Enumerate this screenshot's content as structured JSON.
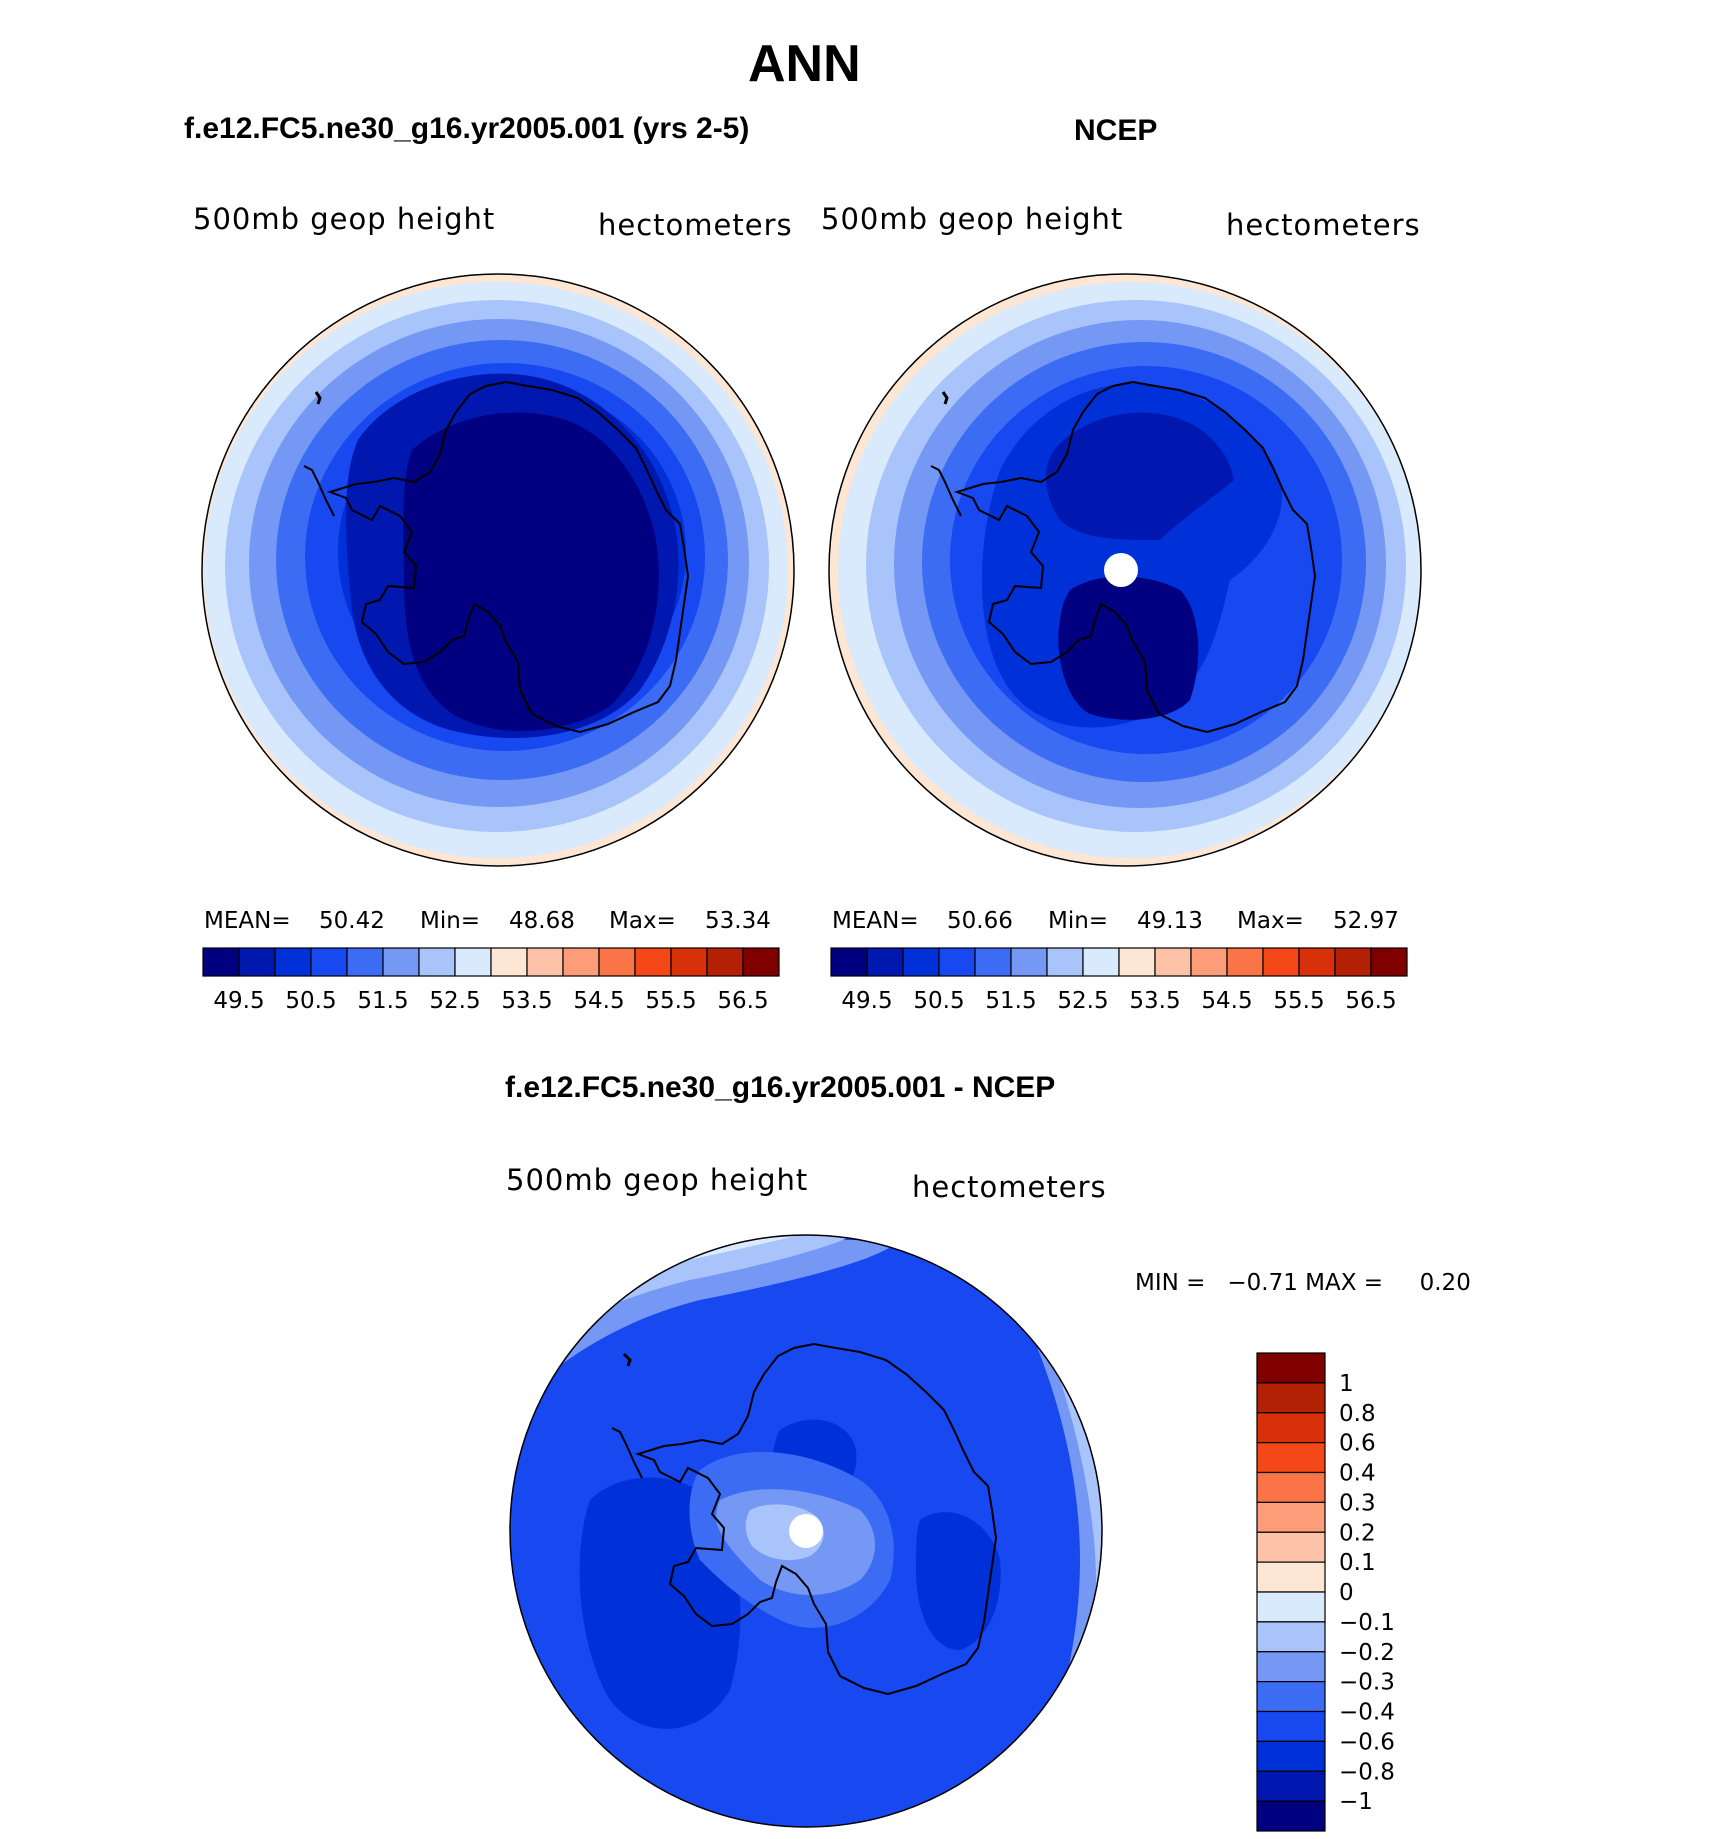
{
  "figure": {
    "title": "ANN",
    "diff_title": "f.e12.FC5.ne30_g16.yr2005.001 - NCEP"
  },
  "panels": [
    {
      "subtitle": "f.e12.FC5.ne30_g16.yr2005.001 (yrs 2-5)",
      "left_label": "500mb geop height",
      "right_label": "hectometers",
      "mean_label": "MEAN=",
      "mean_value": "50.42",
      "min_label": "Min=",
      "min_value": "48.68",
      "max_label": "Max=",
      "max_value": "53.34",
      "has_pole_hole": false
    },
    {
      "subtitle": "NCEP",
      "left_label": "500mb geop height",
      "right_label": "hectometers",
      "mean_label": "MEAN=",
      "mean_value": "50.66",
      "min_label": "Min=",
      "min_value": "49.13",
      "max_label": "Max=",
      "max_value": "52.97",
      "has_pole_hole": true
    }
  ],
  "diff_panel": {
    "left_label": "500mb geop height",
    "right_label": "hectometers",
    "minmax_text": "MIN =   −0.71 MAX =     0.20",
    "has_pole_hole": true
  },
  "colorbar_abs": {
    "colors": [
      "#000080",
      "#0018b0",
      "#0030d8",
      "#1848f0",
      "#3c6cf4",
      "#7498f4",
      "#a8c4fa",
      "#d8eafc",
      "#fde6d4",
      "#fdc2a8",
      "#fc9c78",
      "#fa7448",
      "#f44818",
      "#d83008",
      "#b42004",
      "#800000"
    ],
    "tick_labels": [
      "49.5",
      "50.5",
      "51.5",
      "52.5",
      "53.5",
      "54.5",
      "55.5",
      "56.5"
    ]
  },
  "colorbar_diff": {
    "colors": [
      "#000080",
      "#0018b0",
      "#0030d8",
      "#1848f0",
      "#3c6cf4",
      "#7498f4",
      "#a8c4fa",
      "#d8eafc",
      "#fde6d4",
      "#fdc2a8",
      "#fc9c78",
      "#fa7448",
      "#f44818",
      "#d83008",
      "#b42004",
      "#800000"
    ],
    "tick_labels": [
      "−1",
      "−0.8",
      "−0.6",
      "−0.4",
      "−0.3",
      "−0.2",
      "−0.1",
      "0",
      "0.1",
      "0.2",
      "0.3",
      "0.4",
      "0.6",
      "0.8",
      "1"
    ]
  },
  "map_data": {
    "projection": "south polar stereographic",
    "fields": [
      {
        "panel": "model",
        "min": 48.68,
        "max": 53.34,
        "mean": 50.42
      },
      {
        "panel": "NCEP",
        "min": 49.13,
        "max": 52.97,
        "mean": 50.66
      },
      {
        "panel": "difference",
        "min": -0.71,
        "max": 0.2
      }
    ]
  }
}
